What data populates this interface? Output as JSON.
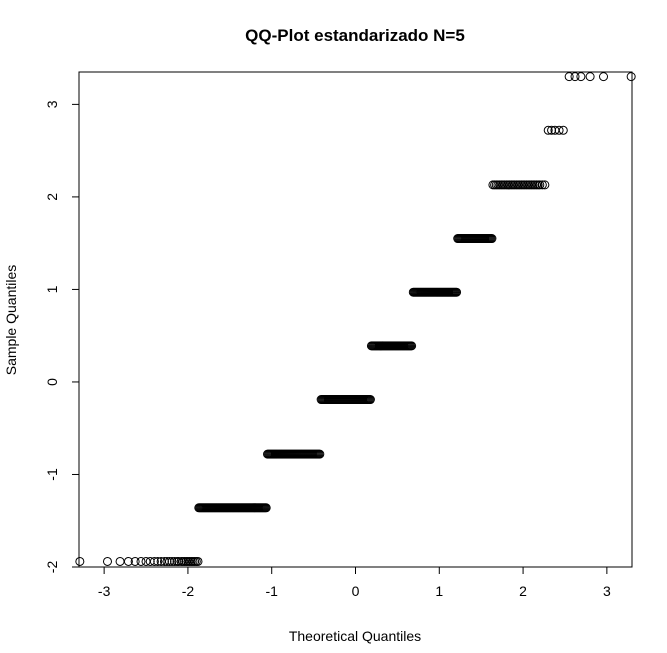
{
  "chart_data": {
    "type": "scatter",
    "title": "QQ-Plot estandarizado N=5",
    "xlabel": "Theoretical Quantiles",
    "ylabel": "Sample Quantiles",
    "xlim": [
      -3.3,
      3.3
    ],
    "ylim": [
      -2.0,
      3.35
    ],
    "x_ticks": [
      -3,
      -2,
      -1,
      0,
      1,
      2,
      3
    ],
    "y_ticks": [
      -2,
      -1,
      0,
      1,
      2,
      3
    ],
    "grid": false,
    "legend": "none",
    "marker": "open-circle",
    "color": "#000000",
    "levels": [
      {
        "y": -1.94,
        "x_start": -3.29,
        "x_end": -1.88,
        "sparse_x": [
          -3.29,
          -2.96,
          -2.81,
          -2.71,
          -2.63,
          -2.56,
          -2.5,
          -2.45,
          -2.4,
          -2.36,
          -2.32,
          -2.28,
          -2.25,
          -2.22,
          -2.19,
          -2.16,
          -2.13,
          -2.11,
          -2.08,
          -2.06,
          -2.04,
          -2.02,
          -2.0,
          -1.98,
          -1.96,
          -1.94,
          -1.92,
          -1.9,
          -1.88
        ],
        "dense": false
      },
      {
        "y": -1.36,
        "x_start": -1.87,
        "x_end": -1.06,
        "dense": true
      },
      {
        "y": -0.78,
        "x_start": -1.05,
        "x_end": -0.42,
        "dense": true
      },
      {
        "y": -0.19,
        "x_start": -0.41,
        "x_end": 0.18,
        "dense": true
      },
      {
        "y": 0.39,
        "x_start": 0.19,
        "x_end": 0.68,
        "dense": true
      },
      {
        "y": 0.97,
        "x_start": 0.69,
        "x_end": 1.21,
        "dense": true
      },
      {
        "y": 1.55,
        "x_start": 1.22,
        "x_end": 1.63,
        "dense": true
      },
      {
        "y": 2.13,
        "x_start": 1.64,
        "x_end": 2.26,
        "sparse_x": [
          1.64,
          1.66,
          1.68,
          1.7,
          1.72,
          1.74,
          1.76,
          1.78,
          1.8,
          1.82,
          1.84,
          1.86,
          1.88,
          1.9,
          1.92,
          1.94,
          1.96,
          1.98,
          2.0,
          2.02,
          2.04,
          2.06,
          2.08,
          2.1,
          2.12,
          2.14,
          2.16,
          2.18,
          2.2,
          2.23,
          2.26
        ],
        "dense": false
      },
      {
        "y": 2.72,
        "x_start": 2.3,
        "x_end": 2.48,
        "sparse_x": [
          2.3,
          2.34,
          2.38,
          2.43,
          2.48
        ],
        "dense": false
      },
      {
        "y": 3.3,
        "x_start": 2.55,
        "x_end": 3.29,
        "sparse_x": [
          2.55,
          2.62,
          2.69,
          2.8,
          2.96,
          3.29
        ],
        "dense": false
      }
    ]
  }
}
